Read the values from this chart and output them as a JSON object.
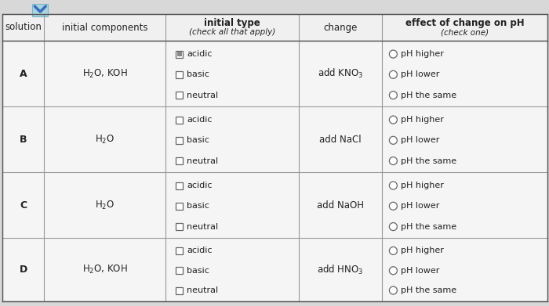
{
  "bg_color": "#d8d8d8",
  "table_bg": "#ffffff",
  "rows": [
    "A",
    "B",
    "C",
    "D"
  ],
  "initial_components": [
    "H$_2$O, KOH",
    "H$_2$O",
    "H$_2$O",
    "H$_2$O, KOH"
  ],
  "changes": [
    "add KNO$_3$",
    "add NaCl",
    "add NaOH",
    "add HNO$_3$"
  ],
  "options_type": [
    "acidic",
    "basic",
    "neutral"
  ],
  "options_effect": [
    "pH higher",
    "pH lower",
    "pH the same"
  ],
  "text_color": "#222222",
  "line_color": "#999999",
  "checkbox_color": "#666666",
  "radio_color": "#666666",
  "header_line_color": "#555555",
  "chevron_color": "#3a6abf",
  "cell_bg": "#f5f5f5",
  "header_bg": "#f0f0f0"
}
